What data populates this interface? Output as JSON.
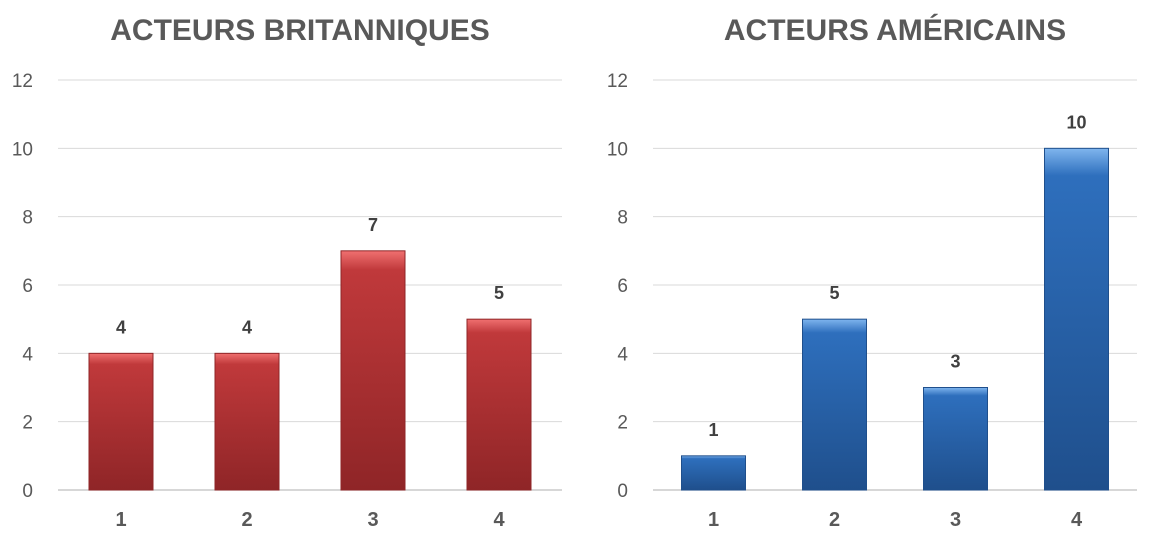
{
  "chart_data": [
    {
      "type": "bar",
      "title": "ACTEURS BRITANNIQUES",
      "categories": [
        "1",
        "2",
        "3",
        "4"
      ],
      "values": [
        4,
        4,
        7,
        5
      ],
      "ylim": [
        0,
        12
      ],
      "yticks": [
        0,
        2,
        4,
        6,
        8,
        10,
        12
      ],
      "grid": true,
      "color": "#c0393b",
      "color_light": "#f07070",
      "color_dark": "#8f2527"
    },
    {
      "type": "bar",
      "title": "ACTEURS AMÉRICAINS",
      "categories": [
        "1",
        "2",
        "3",
        "4"
      ],
      "values": [
        1,
        5,
        3,
        10
      ],
      "ylim": [
        0,
        12
      ],
      "yticks": [
        0,
        2,
        4,
        6,
        8,
        10,
        12
      ],
      "grid": true,
      "color": "#2e6fbd",
      "color_light": "#7fb5ee",
      "color_dark": "#1f4f8c"
    }
  ]
}
